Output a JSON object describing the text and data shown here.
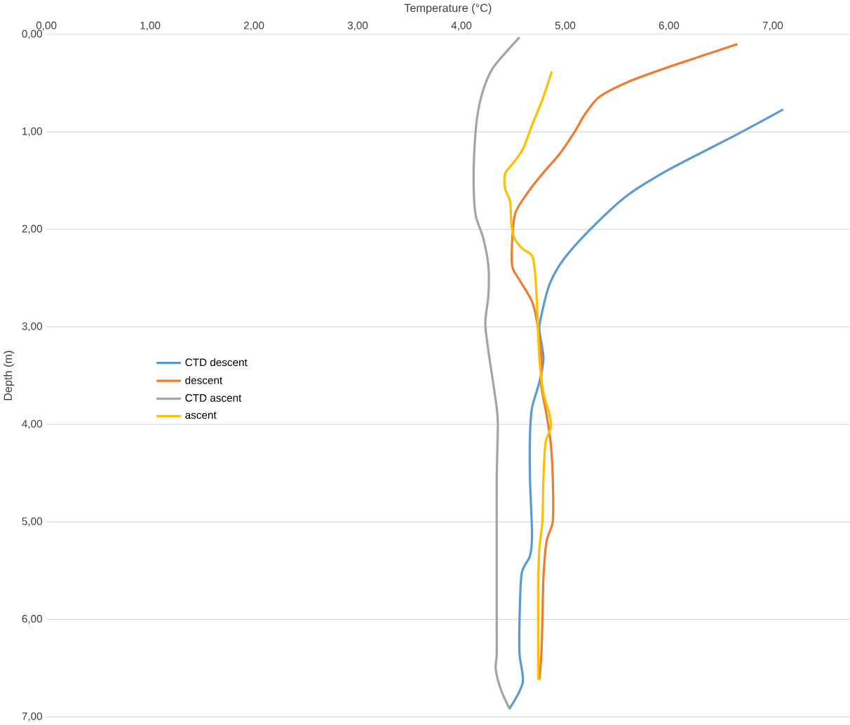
{
  "chart_data": {
    "type": "line",
    "xlabel": "Temperature  (°C)",
    "ylabel": "Depth (m)",
    "xlim": [
      0,
      7.74
    ],
    "ylim": [
      7,
      0
    ],
    "xticks": [
      {
        "value": 0,
        "label": "0,00"
      },
      {
        "value": 1,
        "label": "1,00"
      },
      {
        "value": 2,
        "label": "2,00"
      },
      {
        "value": 3,
        "label": "3,00"
      },
      {
        "value": 4,
        "label": "4,00"
      },
      {
        "value": 5,
        "label": "5,00"
      },
      {
        "value": 6,
        "label": "6,00"
      },
      {
        "value": 7,
        "label": "7,00"
      }
    ],
    "yticks": [
      {
        "value": 0,
        "label": "0,00"
      },
      {
        "value": 1,
        "label": "1,00"
      },
      {
        "value": 2,
        "label": "2,00"
      },
      {
        "value": 3,
        "label": "3,00"
      },
      {
        "value": 4,
        "label": "4,00"
      },
      {
        "value": 5,
        "label": "5,00"
      },
      {
        "value": 6,
        "label": "6,00"
      },
      {
        "value": 7,
        "label": "7,00"
      }
    ],
    "grid": "y",
    "legend": "left",
    "marker": "none",
    "line_style": "solid",
    "series": [
      {
        "name": "CTD descent",
        "color": "#5b9bd5",
        "x": [
          7.1,
          6.63,
          6.01,
          5.6,
          5.26,
          4.99,
          4.85,
          4.77,
          4.75,
          4.79,
          4.75,
          4.68,
          4.66,
          4.66,
          4.68,
          4.66,
          4.58,
          4.56,
          4.56,
          4.59,
          4.46
        ],
        "values": [
          0.77,
          1.04,
          1.38,
          1.65,
          1.98,
          2.3,
          2.56,
          2.88,
          3.03,
          3.32,
          3.57,
          3.83,
          4.12,
          4.55,
          5.13,
          5.35,
          5.53,
          6.0,
          6.36,
          6.65,
          6.92
        ]
      },
      {
        "name": "descent",
        "color": "#ed7d31",
        "x": [
          6.66,
          6.01,
          5.6,
          5.33,
          5.19,
          5.09,
          4.95,
          4.78,
          4.64,
          4.52,
          4.49,
          4.49,
          4.56,
          4.68,
          4.73,
          4.77,
          4.77,
          4.82,
          4.86,
          4.88,
          4.88,
          4.82,
          4.79,
          4.78,
          4.77,
          4.75
        ],
        "values": [
          0.1,
          0.33,
          0.49,
          0.64,
          0.82,
          1.0,
          1.22,
          1.43,
          1.62,
          1.83,
          2.09,
          2.38,
          2.52,
          2.74,
          2.96,
          3.32,
          3.61,
          3.9,
          4.19,
          4.55,
          4.99,
          5.2,
          5.57,
          6.0,
          6.36,
          6.62
        ]
      },
      {
        "name": "CTD ascent",
        "color": "#a5a5a5",
        "x": [
          4.56,
          4.44,
          4.3,
          4.21,
          4.15,
          4.12,
          4.12,
          4.14,
          4.21,
          4.26,
          4.26,
          4.23,
          4.26,
          4.32,
          4.35,
          4.34,
          4.34,
          4.34,
          4.34,
          4.33,
          4.38,
          4.46
        ],
        "values": [
          0.03,
          0.17,
          0.35,
          0.57,
          0.86,
          1.29,
          1.65,
          1.87,
          2.09,
          2.38,
          2.67,
          2.96,
          3.25,
          3.68,
          3.97,
          4.55,
          5.28,
          6.0,
          6.36,
          6.51,
          6.72,
          6.91
        ]
      },
      {
        "name": "ascent",
        "color": "#ffc000",
        "x": [
          4.87,
          4.78,
          4.68,
          4.59,
          4.49,
          4.42,
          4.42,
          4.47,
          4.48,
          4.51,
          4.59,
          4.68,
          4.71,
          4.73,
          4.75,
          4.79,
          4.85,
          4.86,
          4.81,
          4.79,
          4.78,
          4.75,
          4.74,
          4.74,
          4.74,
          4.74
        ],
        "values": [
          0.38,
          0.67,
          0.93,
          1.18,
          1.33,
          1.43,
          1.58,
          1.72,
          1.94,
          2.09,
          2.2,
          2.27,
          2.45,
          2.81,
          3.32,
          3.68,
          3.9,
          4.04,
          4.19,
          4.55,
          4.99,
          5.28,
          5.64,
          6.0,
          6.36,
          6.62
        ]
      }
    ]
  }
}
